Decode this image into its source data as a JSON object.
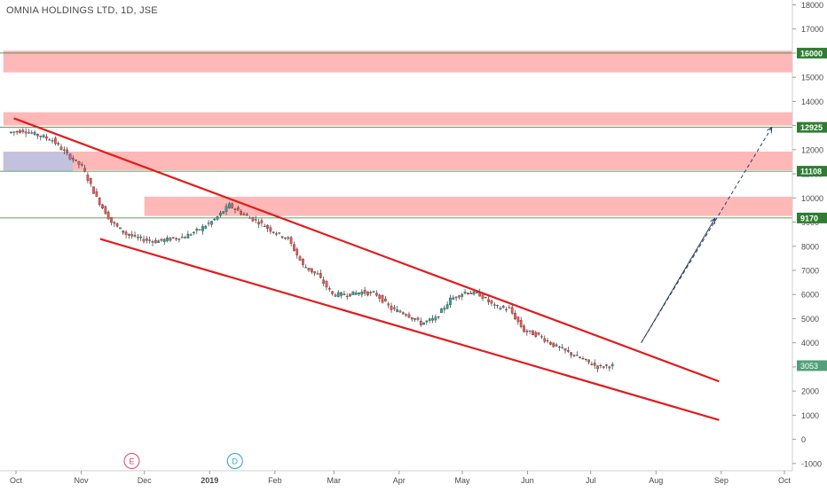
{
  "chart_data": {
    "type": "candlestick",
    "title": "OMNIA HOLDINGS LTD, 1D, JSE",
    "xlabel": "",
    "ylabel": "",
    "x_ticks": [
      "Oct",
      "Nov",
      "Dec",
      "2019",
      "Feb",
      "Mar",
      "Apr",
      "May",
      "Jun",
      "Jul",
      "Aug",
      "Sep",
      "Oct"
    ],
    "x_tick_dates": [
      "2018-10-01",
      "2018-11-01",
      "2018-12-01",
      "2019-01-01",
      "2019-02-01",
      "2019-03-01",
      "2019-04-01",
      "2019-05-01",
      "2019-06-01",
      "2019-07-01",
      "2019-08-01",
      "2019-09-01",
      "2019-10-01"
    ],
    "ylim": [
      -1300,
      18200
    ],
    "y_ticks": [
      -1000,
      0,
      1000,
      2000,
      3000,
      4000,
      5000,
      6000,
      7000,
      8000,
      9000,
      10000,
      11000,
      12000,
      13000,
      14000,
      15000,
      16000,
      17000,
      18000
    ],
    "last_price": 3053,
    "colors": {
      "up": "#26a69a",
      "down": "#ef5350",
      "zone": "#ff9a9a",
      "zone_blue": "#a8c4ef",
      "level": "#2e7d32",
      "channel": "#e31b1b",
      "arrow": "#2a3f66",
      "last_price_bg": "#53a07a"
    },
    "price_series": [
      {
        "date": "2018-09-28",
        "close": 12700
      },
      {
        "date": "2018-10-05",
        "close": 12800
      },
      {
        "date": "2018-10-12",
        "close": 12600
      },
      {
        "date": "2018-10-19",
        "close": 12400
      },
      {
        "date": "2018-10-26",
        "close": 11800
      },
      {
        "date": "2018-11-02",
        "close": 11300
      },
      {
        "date": "2018-11-09",
        "close": 10000
      },
      {
        "date": "2018-11-16",
        "close": 9000
      },
      {
        "date": "2018-11-23",
        "close": 8500
      },
      {
        "date": "2018-11-30",
        "close": 8300
      },
      {
        "date": "2018-12-07",
        "close": 8200
      },
      {
        "date": "2018-12-14",
        "close": 8300
      },
      {
        "date": "2018-12-21",
        "close": 8400
      },
      {
        "date": "2018-12-28",
        "close": 8700
      },
      {
        "date": "2019-01-04",
        "close": 9100
      },
      {
        "date": "2019-01-11",
        "close": 9700
      },
      {
        "date": "2019-01-18",
        "close": 9300
      },
      {
        "date": "2019-01-25",
        "close": 9000
      },
      {
        "date": "2019-02-01",
        "close": 8600
      },
      {
        "date": "2019-02-08",
        "close": 8300
      },
      {
        "date": "2019-02-15",
        "close": 7200
      },
      {
        "date": "2019-02-22",
        "close": 6800
      },
      {
        "date": "2019-03-01",
        "close": 6000
      },
      {
        "date": "2019-03-08",
        "close": 6000
      },
      {
        "date": "2019-03-15",
        "close": 6100
      },
      {
        "date": "2019-03-22",
        "close": 6000
      },
      {
        "date": "2019-03-29",
        "close": 5400
      },
      {
        "date": "2019-04-05",
        "close": 5200
      },
      {
        "date": "2019-04-12",
        "close": 4800
      },
      {
        "date": "2019-04-19",
        "close": 5000
      },
      {
        "date": "2019-04-26",
        "close": 5800
      },
      {
        "date": "2019-05-03",
        "close": 6100
      },
      {
        "date": "2019-05-10",
        "close": 6000
      },
      {
        "date": "2019-05-17",
        "close": 5500
      },
      {
        "date": "2019-05-24",
        "close": 5400
      },
      {
        "date": "2019-05-31",
        "close": 4500
      },
      {
        "date": "2019-06-07",
        "close": 4300
      },
      {
        "date": "2019-06-14",
        "close": 3900
      },
      {
        "date": "2019-06-21",
        "close": 3600
      },
      {
        "date": "2019-06-28",
        "close": 3300
      },
      {
        "date": "2019-07-05",
        "close": 3000
      },
      {
        "date": "2019-07-12",
        "close": 3053
      }
    ],
    "levels": [
      {
        "name": "level-16000",
        "value": 16000,
        "label": "16000"
      },
      {
        "name": "level-12925",
        "value": 12925,
        "label": "12925"
      },
      {
        "name": "level-11108",
        "value": 11108,
        "label": "11108"
      },
      {
        "name": "level-9170",
        "value": 9170,
        "label": "9170"
      }
    ],
    "zones": [
      {
        "name": "resistance-zone-1",
        "start": "2018-09-25",
        "end": "2019-10-10",
        "low": 15200,
        "high": 16100,
        "color": "#ff9a9a"
      },
      {
        "name": "resistance-zone-2",
        "start": "2018-09-25",
        "end": "2019-10-10",
        "low": 13000,
        "high": 13550,
        "color": "#ff9a9a"
      },
      {
        "name": "resistance-zone-3",
        "start": "2018-09-25",
        "end": "2019-10-10",
        "low": 11150,
        "high": 11920,
        "color": "#ff9a9a"
      },
      {
        "name": "resistance-zone-4",
        "start": "2018-12-01",
        "end": "2019-10-10",
        "low": 9250,
        "high": 10050,
        "color": "#ff9a9a"
      },
      {
        "name": "blue-zone",
        "start": "2018-09-25",
        "end": "2018-10-28",
        "low": 11100,
        "high": 11900,
        "color": "#a8c4ef"
      }
    ],
    "channel_lines": [
      {
        "name": "channel-upper-line",
        "start": {
          "date": "2018-09-30",
          "value": 13300
        },
        "end": {
          "date": "2019-08-31",
          "value": 2400
        }
      },
      {
        "name": "channel-lower-line",
        "start": {
          "date": "2018-11-10",
          "value": 8300
        },
        "end": {
          "date": "2019-08-31",
          "value": 800
        }
      }
    ],
    "projection_arrows": [
      {
        "name": "projection-arrow-solid",
        "start": {
          "date": "2019-07-25",
          "value": 4000
        },
        "end": {
          "date": "2019-08-29",
          "value": 9150
        },
        "dashed": false
      },
      {
        "name": "projection-arrow-dashed",
        "start": {
          "date": "2019-07-25",
          "value": 4000
        },
        "end": {
          "date": "2019-09-25",
          "value": 12925
        },
        "dashed": true
      }
    ],
    "event_markers": [
      {
        "name": "earnings-marker",
        "label": "E",
        "date": "2018-11-25",
        "color": "#e0466e"
      },
      {
        "name": "dividend-marker",
        "label": "D",
        "date": "2019-01-13",
        "color": "#2b9fd8"
      }
    ]
  }
}
